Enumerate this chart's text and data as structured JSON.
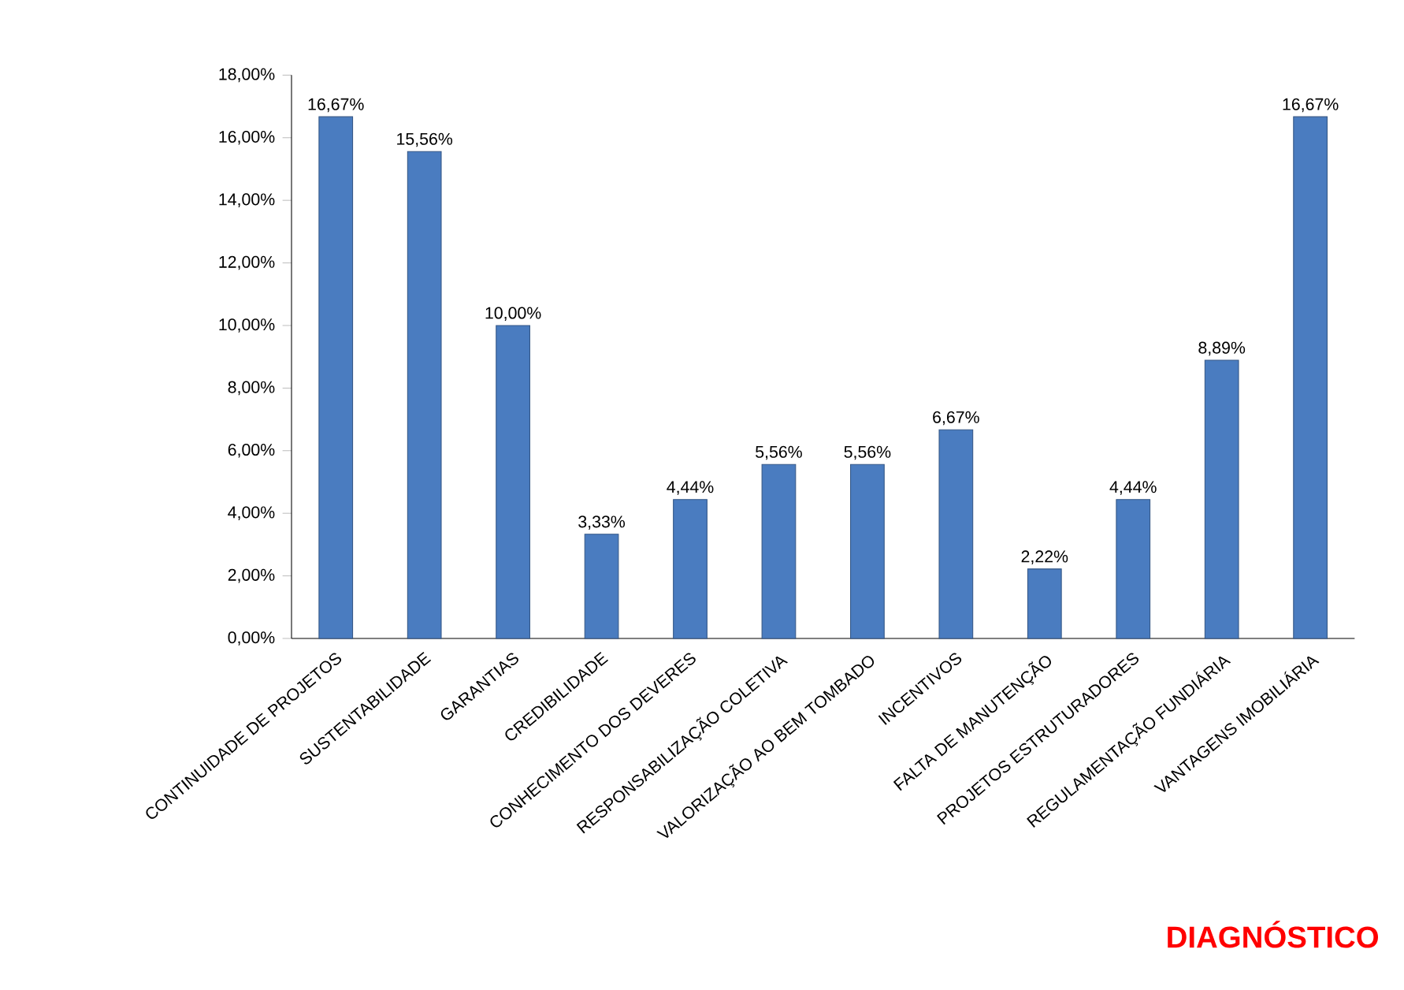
{
  "chart_data": {
    "type": "bar",
    "categories": [
      "CONTINUIDADE DE PROJETOS",
      "SUSTENTABILIDADE",
      "GARANTIAS",
      "CREDIBILIDADE",
      "CONHECIMENTO DOS DEVERES",
      "RESPONSABILIZAÇÃO COLETIVA",
      "VALORIZAÇÃO AO BEM TOMBADO",
      "INCENTIVOS",
      "FALTA DE MANUTENÇÃO",
      "PROJETOS ESTRUTURADORES",
      "REGULAMENTAÇÃO FUNDIÁRIA",
      "VANTAGENS IMOBILIÁRIA"
    ],
    "values": [
      16.67,
      15.56,
      10.0,
      3.33,
      4.44,
      5.56,
      5.56,
      6.67,
      2.22,
      4.44,
      8.89,
      16.67
    ],
    "value_labels": [
      "16,67%",
      "15,56%",
      "10,00%",
      "3,33%",
      "4,44%",
      "5,56%",
      "5,56%",
      "6,67%",
      "2,22%",
      "4,44%",
      "8,89%",
      "16,67%"
    ],
    "color": "#4a7cc0",
    "ylim": [
      0,
      18
    ],
    "yticks": [
      {
        "value": 0,
        "label": "0,00%"
      },
      {
        "value": 2,
        "label": "2,00%"
      },
      {
        "value": 4,
        "label": "4,00%"
      },
      {
        "value": 6,
        "label": "6,00%"
      },
      {
        "value": 8,
        "label": "8,00%"
      },
      {
        "value": 10,
        "label": "10,00%"
      },
      {
        "value": 12,
        "label": "12,00%"
      },
      {
        "value": 14,
        "label": "14,00%"
      },
      {
        "value": 16,
        "label": "16,00%"
      },
      {
        "value": 18,
        "label": "18,00%"
      }
    ],
    "annotations": [
      "DIAGNÓSTICO"
    ]
  }
}
